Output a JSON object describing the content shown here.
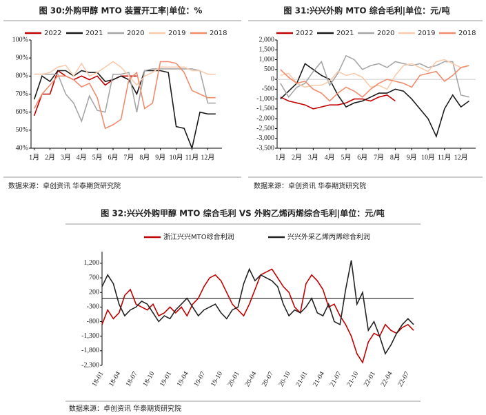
{
  "chart_data": [
    {
      "type": "line",
      "title": "图 30:外购甲醇 MTO 装置开工率|单位：%",
      "source": "数据来源：卓创资讯 华泰期货研究院",
      "x": [
        1,
        1.5,
        2,
        2.5,
        3,
        3.5,
        4,
        4.5,
        5,
        5.5,
        6,
        6.5,
        7,
        7.5,
        8,
        8.5,
        9,
        9.5,
        10,
        10.5,
        11,
        11.5,
        12,
        12.5
      ],
      "xlim": [
        0.8,
        12.9
      ],
      "xticks": [
        {
          "value": 1,
          "label": "1月"
        },
        {
          "value": 2,
          "label": "2月"
        },
        {
          "value": 3,
          "label": "3月"
        },
        {
          "value": 4,
          "label": "4月"
        },
        {
          "value": 5,
          "label": "5月"
        },
        {
          "value": 6,
          "label": "6月"
        },
        {
          "value": 7,
          "label": "7月"
        },
        {
          "value": 8,
          "label": "8月"
        },
        {
          "value": 9,
          "label": "9月"
        },
        {
          "value": 10,
          "label": "10月"
        },
        {
          "value": 11,
          "label": "11月"
        },
        {
          "value": 12,
          "label": "12月"
        }
      ],
      "ylim": [
        40,
        100
      ],
      "yticks": [
        {
          "value": 40,
          "label": "40%"
        },
        {
          "value": 50,
          "label": "50%"
        },
        {
          "value": 60,
          "label": "60%"
        },
        {
          "value": 70,
          "label": "70%"
        },
        {
          "value": 80,
          "label": "80%"
        },
        {
          "value": 90,
          "label": "90%"
        },
        {
          "value": 100,
          "label": "100%"
        }
      ],
      "series": [
        {
          "name": "2022",
          "color": "#c00000",
          "values": [
            58,
            70,
            70,
            83,
            80,
            78,
            80,
            78,
            80,
            75,
            78,
            80,
            80,
            80,
            null,
            null,
            null,
            null,
            null,
            null,
            null,
            null,
            null,
            null
          ]
        },
        {
          "name": "2021",
          "color": "#1a1a1a",
          "values": [
            67,
            80,
            77,
            83,
            83,
            80,
            83,
            82,
            82,
            77,
            78,
            80,
            78,
            70,
            83,
            83,
            83,
            82,
            52,
            51,
            40,
            60,
            59,
            59
          ]
        },
        {
          "name": "2020",
          "color": "#a6a6a6",
          "values": [
            81,
            81,
            81,
            81,
            70,
            65,
            55,
            69,
            61,
            60,
            81,
            81,
            82,
            60,
            83,
            84,
            84,
            84,
            84,
            84,
            84,
            83,
            65,
            65
          ]
        },
        {
          "name": "2019",
          "color": "#f8cbad",
          "values": [
            81,
            81,
            82,
            85,
            86,
            80,
            87,
            80,
            82,
            85,
            88,
            85,
            80,
            75,
            80,
            82,
            85,
            85,
            85,
            85,
            83,
            83,
            81,
            81
          ]
        },
        {
          "name": "2018",
          "color": "#f08c6e",
          "values": [
            62,
            70,
            75,
            80,
            80,
            78,
            74,
            76,
            68,
            51,
            53,
            56,
            78,
            82,
            62,
            65,
            88,
            88,
            87,
            82,
            72,
            70,
            68,
            68
          ]
        }
      ]
    },
    {
      "type": "line",
      "title": "图 31:兴兴外购 MTO 综合毛利|单位：元/吨",
      "source": "数据来源：卓创资讯 华泰期货研究院",
      "x": [
        1,
        1.5,
        2,
        2.5,
        3,
        3.5,
        4,
        4.5,
        5,
        5.5,
        6,
        6.5,
        7,
        7.5,
        8,
        8.5,
        9,
        9.5,
        10,
        10.5,
        11,
        11.5,
        12,
        12.5
      ],
      "xlim": [
        0.8,
        12.9
      ],
      "xticks": [
        {
          "value": 1,
          "label": "1月"
        },
        {
          "value": 2,
          "label": "2月"
        },
        {
          "value": 3,
          "label": "3月"
        },
        {
          "value": 4,
          "label": "4月"
        },
        {
          "value": 5,
          "label": "5月"
        },
        {
          "value": 6,
          "label": "6月"
        },
        {
          "value": 7,
          "label": "7月"
        },
        {
          "value": 8,
          "label": "8月"
        },
        {
          "value": 9,
          "label": "9月"
        },
        {
          "value": 10,
          "label": "10月"
        },
        {
          "value": 11,
          "label": "11月"
        },
        {
          "value": 12,
          "label": "12月"
        }
      ],
      "ylim": [
        -3500,
        2000
      ],
      "yticks": [
        {
          "value": -3500,
          "label": "-3,500"
        },
        {
          "value": -3000,
          "label": "-3,000"
        },
        {
          "value": -2500,
          "label": "-2,500"
        },
        {
          "value": -2000,
          "label": "-2,000"
        },
        {
          "value": -1500,
          "label": "-1,500"
        },
        {
          "value": -1000,
          "label": "-1,000"
        },
        -500,
        0,
        500,
        {
          "value": 1000,
          "label": "1,000"
        },
        {
          "value": 1500,
          "label": "1,500"
        },
        {
          "value": 2000,
          "label": "2,000"
        }
      ],
      "series": [
        {
          "name": "2022",
          "color": "#c00000",
          "values": [
            -900,
            -1100,
            -1200,
            -1300,
            -1500,
            -1400,
            -1300,
            -1300,
            -1200,
            -1000,
            -1000,
            -1100,
            -900,
            -800,
            -1100,
            null,
            null,
            null,
            null,
            null,
            null,
            null,
            null,
            null
          ]
        },
        {
          "name": "2021",
          "color": "#1a1a1a",
          "values": [
            -1000,
            -600,
            -200,
            800,
            500,
            200,
            0,
            -800,
            -1400,
            -1200,
            -1100,
            -900,
            -700,
            -700,
            -500,
            -600,
            -1000,
            -1500,
            -2000,
            -2900,
            -1500,
            -800,
            -1400,
            -1100
          ]
        },
        {
          "name": "2020",
          "color": "#a6a6a6",
          "values": [
            -200,
            -900,
            -400,
            -200,
            400,
            900,
            -300,
            300,
            1200,
            1000,
            500,
            700,
            800,
            600,
            900,
            800,
            700,
            800,
            600,
            700,
            900,
            900,
            -800,
            -900
          ]
        },
        {
          "name": "2019",
          "color": "#f8cbad",
          "values": [
            200,
            300,
            -200,
            -400,
            -300,
            -300,
            -100,
            400,
            200,
            300,
            100,
            -400,
            -300,
            -500,
            200,
            700,
            800,
            600,
            400,
            900,
            1000,
            800,
            600,
            700
          ]
        },
        {
          "name": "2018",
          "color": "#f08c6e",
          "values": [
            500,
            100,
            -200,
            -100,
            -500,
            -700,
            -1100,
            -700,
            -400,
            -600,
            -900,
            -500,
            -200,
            0,
            -100,
            -200,
            -400,
            200,
            300,
            400,
            -100,
            200,
            600,
            700
          ]
        }
      ]
    },
    {
      "type": "line",
      "title": "图 32:兴兴外购甲醇 MTO 综合毛利 VS 外购乙烯丙烯综合毛利|单位：元/吨",
      "source": "数据来源：卓创资讯 华泰期货研究院",
      "categories": [
        "18-01",
        null,
        null,
        "18-04",
        null,
        null,
        "18-07",
        null,
        null,
        "18-10",
        null,
        null,
        "19-01",
        null,
        null,
        "19-04",
        null,
        null,
        "19-07",
        null,
        null,
        "19-10",
        null,
        null,
        "20-01",
        null,
        null,
        "20-04",
        null,
        null,
        "20-07",
        null,
        null,
        "20-10",
        null,
        null,
        "21-01",
        null,
        null,
        "21-04",
        null,
        null,
        "21-07",
        null,
        null,
        "21-10",
        null,
        null,
        "22-01",
        null,
        null,
        "22-04",
        null,
        null,
        "22-07",
        null
      ],
      "ylim": [
        -2300,
        1600
      ],
      "yticks": [
        {
          "value": -2300,
          "label": "-2,300"
        },
        {
          "value": -1800,
          "label": "-1,800"
        },
        {
          "value": -1300,
          "label": "-1,300"
        },
        -800,
        -300,
        200,
        700,
        {
          "value": 1200,
          "label": "1,200"
        }
      ],
      "series": [
        {
          "name": "浙江兴兴MTO综合利润",
          "color": "#c00000",
          "values": [
            -900,
            -400,
            -700,
            -500,
            100,
            300,
            -200,
            -300,
            -400,
            -200,
            -600,
            -500,
            -300,
            -500,
            -300,
            -600,
            -200,
            0,
            400,
            700,
            800,
            600,
            200,
            -200,
            -400,
            -600,
            -200,
            300,
            800,
            900,
            1000,
            700,
            400,
            200,
            -300,
            -500,
            500,
            800,
            600,
            300,
            -300,
            -200,
            -600,
            -900,
            -1300,
            -1900,
            -2200,
            -1500,
            -1200,
            -1300,
            -900,
            -1100,
            -1200,
            -1000,
            -900,
            -1100
          ]
        },
        {
          "name": "兴兴外采乙烯丙烯综合利润",
          "color": "#222222",
          "values": [
            400,
            800,
            500,
            -200,
            -600,
            -400,
            -300,
            -100,
            -200,
            -500,
            -800,
            -600,
            -700,
            -400,
            -200,
            0,
            -300,
            -600,
            -400,
            -300,
            -200,
            -500,
            -700,
            -400,
            -300,
            500,
            1000,
            600,
            800,
            700,
            600,
            400,
            -200,
            -600,
            -400,
            -500,
            -300,
            0,
            -500,
            -600,
            -200,
            -800,
            -900,
            300,
            1300,
            -200,
            200,
            -1100,
            -800,
            -1300,
            -1900,
            -1600,
            -1200,
            -900,
            -700,
            -900
          ]
        }
      ]
    }
  ]
}
